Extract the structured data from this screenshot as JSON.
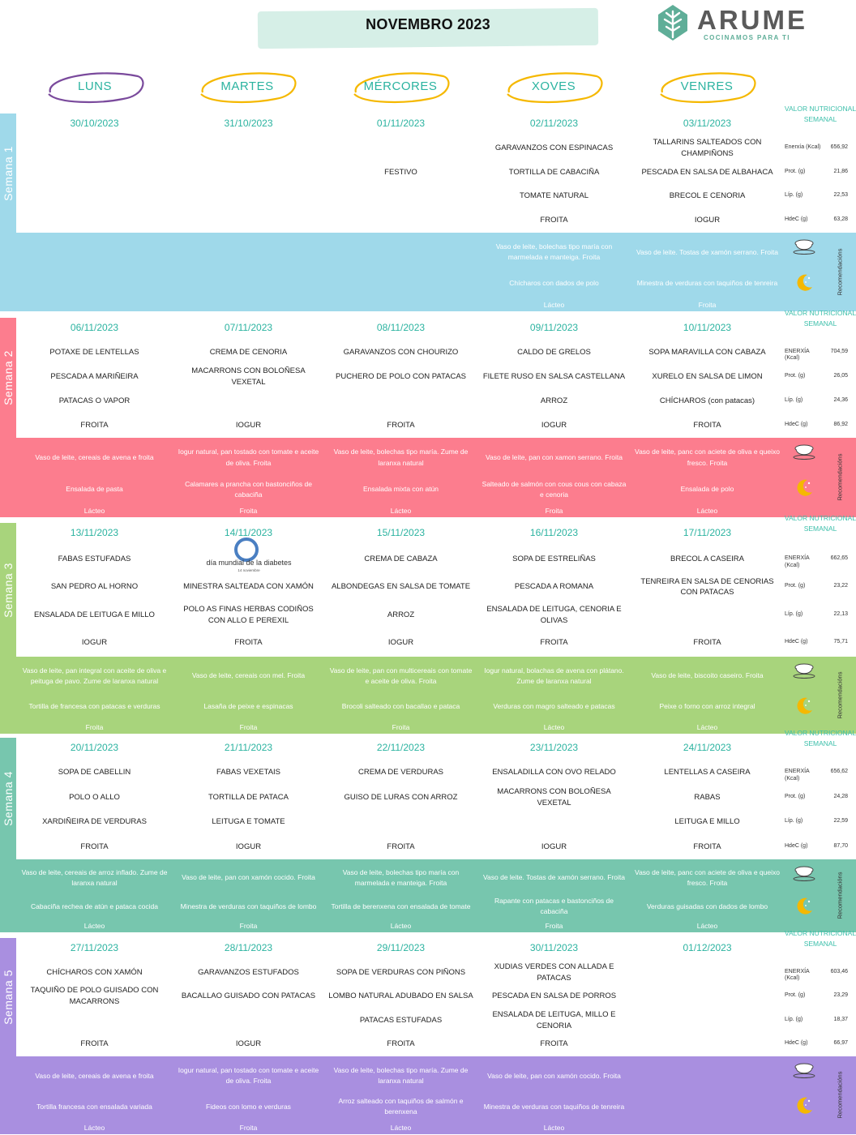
{
  "title": "NOVEMBRO 2023",
  "brand": {
    "name": "ARUME",
    "tagline": "COCINAMOS PARA TI"
  },
  "days": [
    "LUNS",
    "MARTES",
    "MÉRCORES",
    "XOVES",
    "VENRES"
  ],
  "nutrition_title": "VALOR NUTRICIONAL SEMANAL",
  "recommendations_label": "Recomendacións",
  "weeks": [
    {
      "label": "Semana 1",
      "color": "#9fd9ea",
      "dates": [
        "30/10/2023",
        "31/10/2023",
        "01/11/2023",
        "02/11/2023",
        "03/11/2023"
      ],
      "menu": [
        [
          "",
          "",
          "",
          "GARAVANZOS CON ESPINACAS",
          "TALLARINS SALTEADOS CON CHAMPIÑONS"
        ],
        [
          "",
          "",
          "FESTIVO",
          "TORTILLA  DE CABACIÑA",
          "PESCADA EN SALSA DE ALBAHACA"
        ],
        [
          "",
          "",
          "",
          "TOMATE NATURAL",
          "BRECOL E CENORIA"
        ],
        [
          "",
          "",
          "",
          "FROITA",
          "IOGUR"
        ]
      ],
      "nutrition": [
        [
          "Enerxía (Kcal)",
          "656,92"
        ],
        [
          "Prot. (g)",
          "21,86"
        ],
        [
          "Líp. (g)",
          "22,53"
        ],
        [
          "HdeC (g)",
          "63,28"
        ]
      ],
      "breakfast": [
        "",
        "",
        "",
        "Vaso de leite, bolechas tipo maría con marmelada e manteiga. Froita",
        "Vaso de leite. Tostas de xamón serrano. Froita"
      ],
      "dinner": [
        "",
        "",
        "",
        "Chícharos con dados de polo",
        "Minestra de verduras con taquiños de tenreira"
      ],
      "dessert": [
        "",
        "",
        "",
        "Lácteo",
        "Froita"
      ]
    },
    {
      "label": "Semana 2",
      "color": "#fc7d8e",
      "dates": [
        "06/11/2023",
        "07/11/2023",
        "08/11/2023",
        "09/11/2023",
        "10/11/2023"
      ],
      "menu": [
        [
          "POTAXE DE LENTELLAS",
          "CREMA DE CENORIA",
          "GARAVANZOS CON CHOURIZO",
          "CALDO DE GRELOS",
          "SOPA MARAVILLA CON CABAZA"
        ],
        [
          "PESCADA A MARIÑEIRA",
          "MACARRONS CON BOLOÑESA VEXETAL",
          "PUCHERO DE POLO CON PATACAS",
          "FILETE RUSO EN SALSA CASTELLANA",
          "XURELO EN SALSA DE LIMON"
        ],
        [
          "PATACAS O VAPOR",
          "",
          "",
          "ARROZ",
          "CHÍCHAROS (con patacas)"
        ],
        [
          "FROITA",
          "IOGUR",
          "FROITA",
          "IOGUR",
          "FROITA"
        ]
      ],
      "nutrition": [
        [
          "ENERXÍA (Kcal)",
          "704,59"
        ],
        [
          "Prot. (g)",
          "26,05"
        ],
        [
          "Líp. (g)",
          "24,36"
        ],
        [
          "HdeC (g)",
          "86,92"
        ]
      ],
      "breakfast": [
        "Vaso de leite, cereais de avena e froita",
        "Iogur natural, pan tostado con tomate e aceite de oliva. Froita",
        "Vaso de leite, bolechas tipo maría. Zume de laranxa natural",
        "Vaso de leite, pan con xamon serrano. Froita",
        "Vaso de leite, panc con aciete de oliva e queixo fresco. Froita"
      ],
      "dinner": [
        "Ensalada de pasta",
        "Calamares a prancha con bastonciños de cabaciña",
        "Ensalada mixta con atún",
        "Salteado de salmón con cous cous con cabaza e cenoria",
        "Ensalada de polo"
      ],
      "dessert": [
        "Lácteo",
        "Froita",
        "Lácteo",
        "Froita",
        "Lácteo"
      ]
    },
    {
      "label": "Semana 3",
      "color": "#a8d47c",
      "dates": [
        "13/11/2023",
        "14/11/2023",
        "15/11/2023",
        "16/11/2023",
        "17/11/2023"
      ],
      "menu": [
        [
          "FABAS ESTUFADAS",
          "",
          "CREMA DE CABAZA",
          "SOPA DE ESTRELIÑAS",
          "BRECOL A CASEIRA"
        ],
        [
          "SAN PEDRO AL HORNO",
          "MINESTRA SALTEADA CON XAMÓN",
          "ALBONDEGAS EN SALSA DE TOMATE",
          "PESCADA A ROMANA",
          "TENREIRA EN SALSA DE CENORIAS CON PATACAS"
        ],
        [
          "ENSALADA DE LEITUGA E MILLO",
          "POLO AS FINAS HERBAS CODIÑOS CON ALLO E PEREXIL",
          "ARROZ",
          "ENSALADA DE LEITUGA, CENORIA E OLIVAS",
          ""
        ],
        [
          "IOGUR",
          "FROITA",
          "IOGUR",
          "FROITA",
          "FROITA"
        ]
      ],
      "diabetes_logo": {
        "text": "día mundial de la diabetes",
        "date": "14 noviembre"
      },
      "nutrition": [
        [
          "ENERXÍA (Kcal)",
          "662,65"
        ],
        [
          "Prot. (g)",
          "23,22"
        ],
        [
          "Líp. (g)",
          "22,13"
        ],
        [
          "HdeC (g)",
          "75,71"
        ]
      ],
      "breakfast": [
        "Vaso de leite, pan integral con aceite de oliva  e peituga de pavo. Zume de laranxa natural",
        "Vaso de leite, cereais con  mel. Froita",
        "Vaso de leite, pan con multicereais con tomate e aceite de oliva. Froita",
        "Iogur natural, bolachas de avena con plátano. Zume de laranxa natural",
        "Vaso de leite, biscoito caseiro. Froita"
      ],
      "dinner": [
        "Tortilla de francesa con patacas e verduras",
        "Lasaña de peixe e espinacas",
        "Brocoli salteado con bacallao e pataca",
        "Verduras con magro salteado e patacas",
        "Peixe o forno con arroz integral"
      ],
      "dessert": [
        "Froita",
        "Froita",
        "Froita",
        "Lácteo",
        "Lácteo"
      ]
    },
    {
      "label": "Semana 4",
      "color": "#77c6ae",
      "dates": [
        "20/11/2023",
        "21/11/2023",
        "22/11/2023",
        "23/11/2023",
        "24/11/2023"
      ],
      "menu": [
        [
          "SOPA DE CABELLIN",
          "FABAS VEXETAIS",
          "CREMA DE VERDURAS",
          "ENSALADILLA CON OVO RELADO",
          "LENTELLAS A CASEIRA"
        ],
        [
          "POLO O ALLO",
          "TORTILLA DE PATACA",
          "GUISO DE LURAS CON ARROZ",
          "MACARRONS CON BOLOÑESA VEXETAL",
          "RABAS"
        ],
        [
          "XARDIÑEIRA DE VERDURAS",
          "LEITUGA E TOMATE",
          "",
          "",
          "LEITUGA E MILLO"
        ],
        [
          "FROITA",
          "IOGUR",
          "FROITA",
          "IOGUR",
          "FROITA"
        ]
      ],
      "nutrition": [
        [
          "ENERXÍA (Kcal)",
          "656,62"
        ],
        [
          "Prot. (g)",
          "24,28"
        ],
        [
          "Líp. (g)",
          "22,59"
        ],
        [
          "HdeC (g)",
          "87,70"
        ]
      ],
      "breakfast": [
        "Vaso de leite, cereais de arroz inflado. Zume de laranxa natural",
        "Vaso de leite, pan con xamón cocido. Froita",
        "Vaso de leite, bolechas tipo maría con marmelada e manteiga. Froita",
        "Vaso de leite. Tostas de xamón serrano. Froita",
        "Vaso de leite, panc con aciete de oliva e queixo fresco. Froita"
      ],
      "dinner": [
        "Cabaciña rechea de atún e pataca cocida",
        "Minestra de verduras con taquiños de lombo",
        "Tortilla de berenxena con ensalada de tomate",
        "Rapante con patacas e  bastonciños de cabaciña",
        "Verduras guisadas con dados de lombo"
      ],
      "dessert": [
        "Lácteo",
        "Froita",
        "Lácteo",
        "Froita",
        "Lácteo"
      ]
    },
    {
      "label": "Semana 5",
      "color": "#a98fe0",
      "dates": [
        "27/11/2023",
        "28/11/2023",
        "29/11/2023",
        "30/11/2023",
        "01/12/2023"
      ],
      "menu": [
        [
          "CHÍCHAROS CON XAMÓN",
          "GARAVANZOS ESTUFADOS",
          "SOPA DE VERDURAS CON PIÑONS",
          "XUDIAS VERDES CON ALLADA E PATACAS",
          ""
        ],
        [
          "TAQUIÑO DE POLO GUISADO CON MACARRONS",
          "BACALLAO GUISADO CON PATACAS",
          "LOMBO NATURAL ADUBADO EN SALSA",
          "PESCADA EN SALSA DE PORROS",
          ""
        ],
        [
          "",
          "",
          "PATACAS ESTUFADAS",
          "ENSALADA DE LEITUGA, MILLO E CENORIA",
          ""
        ],
        [
          "FROITA",
          "IOGUR",
          "FROITA",
          "FROITA",
          ""
        ]
      ],
      "nutrition": [
        [
          "ENERXÍA (Kcal)",
          "603,46"
        ],
        [
          "Prot. (g)",
          "23,29"
        ],
        [
          "Líp. (g)",
          "18,37"
        ],
        [
          "HdeC (g)",
          "66,97"
        ]
      ],
      "breakfast": [
        "Vaso de leite, cereais de avena e froita",
        "Iogur natural, pan tostado con tomate e aceite de oliva. Froita",
        "Vaso de leite, bolechas tipo maría. Zume de laranxa natural",
        "Vaso de leite, pan con xamón cocido. Froita",
        ""
      ],
      "dinner": [
        "Tortilla francesa con ensalada variada",
        "Fideos con lomo e verduras",
        "Arroz salteado con taquiños de salmón e berenxena",
        "Minestra de verduras con taquiños de tenreira",
        ""
      ],
      "dessert": [
        "Lácteo",
        "Froita",
        "Lácteo",
        "Lácteo",
        ""
      ]
    }
  ],
  "colors": {
    "accent": "#2bb3a0",
    "oval_luns": "#7a4a9c",
    "oval_other": "#f5b800",
    "title_banner": "#d6efe7"
  },
  "icons": {
    "breakfast": "coffee-cup-icon",
    "dinner": "moon-icon",
    "brand": "tree-leaf-icon"
  }
}
